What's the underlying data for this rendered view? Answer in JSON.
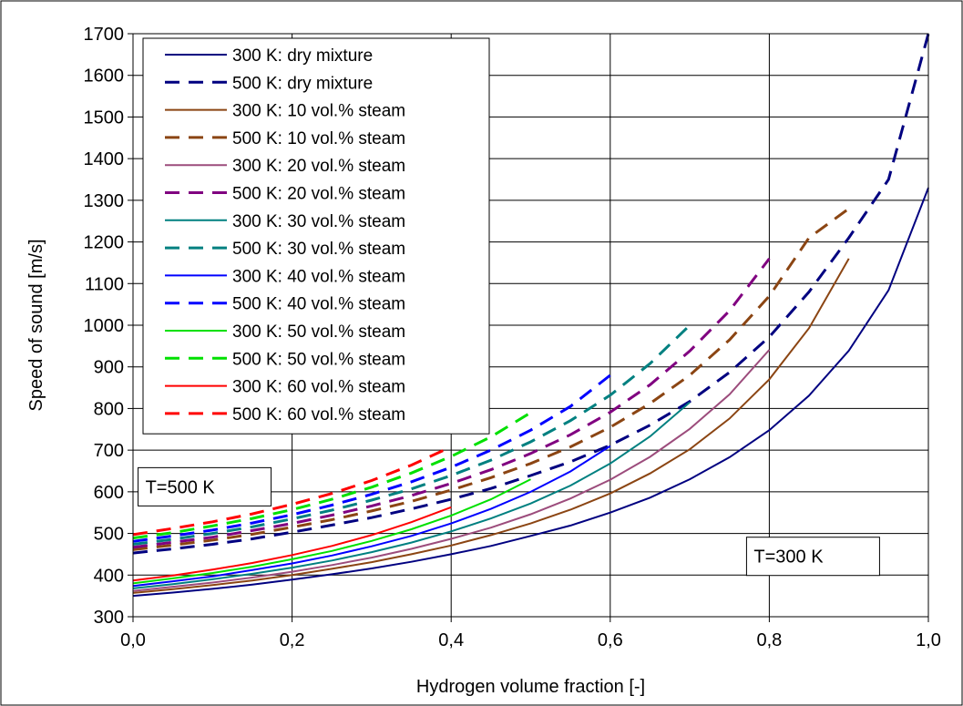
{
  "chart_data": {
    "type": "line",
    "xlabel": "Hydrogen volume fraction [-]",
    "ylabel": "Speed of sound [m/s]",
    "xlim": [
      0,
      1
    ],
    "ylim": [
      300,
      1700
    ],
    "xticks": [
      0,
      0.2,
      0.4,
      0.6,
      0.8,
      1.0
    ],
    "xtick_labels": [
      "0,0",
      "0,2",
      "0,4",
      "0,6",
      "0,8",
      "1,0"
    ],
    "yticks": [
      300,
      400,
      500,
      600,
      700,
      800,
      900,
      1000,
      1100,
      1200,
      1300,
      1400,
      1500,
      1600,
      1700
    ],
    "ytick_labels": [
      "300",
      "400",
      "500",
      "600",
      "700",
      "800",
      "900",
      "1000",
      "1100",
      "1200",
      "1300",
      "1400",
      "1500",
      "1600",
      "1700"
    ],
    "grid": true,
    "legend_position": "top-left",
    "annotations": [
      {
        "text": "T=500 K",
        "x": 0.09,
        "y": 612
      },
      {
        "text": "T=300 K",
        "x": 0.855,
        "y": 445
      }
    ],
    "series": [
      {
        "name": "300 K: dry mixture",
        "color": "#000080",
        "dash": false,
        "x": [
          0,
          0.05,
          0.1,
          0.15,
          0.2,
          0.25,
          0.3,
          0.35,
          0.4,
          0.45,
          0.5,
          0.55,
          0.6,
          0.65,
          0.7,
          0.75,
          0.8,
          0.85,
          0.9,
          0.95,
          1.0
        ],
        "y": [
          350,
          358,
          367,
          377,
          389,
          402,
          416,
          432,
          450,
          470,
          494,
          519,
          550,
          586,
          630,
          683,
          748,
          831,
          939,
          1084,
          1330
        ]
      },
      {
        "name": "500 K: dry mixture",
        "color": "#000080",
        "dash": true,
        "x": [
          0,
          0.05,
          0.1,
          0.15,
          0.2,
          0.25,
          0.3,
          0.35,
          0.4,
          0.45,
          0.5,
          0.55,
          0.6,
          0.65,
          0.7,
          0.75,
          0.8,
          0.85,
          0.9,
          0.95,
          1.0
        ],
        "y": [
          453,
          463,
          474,
          487,
          503,
          520,
          538,
          559,
          582,
          608,
          639,
          672,
          712,
          760,
          817,
          887,
          972,
          1080,
          1210,
          1350,
          1700
        ]
      },
      {
        "name": "300 K: 10 vol.% steam",
        "color": "#8B4513",
        "dash": false,
        "x": [
          0,
          0.05,
          0.1,
          0.15,
          0.2,
          0.25,
          0.3,
          0.35,
          0.4,
          0.45,
          0.5,
          0.55,
          0.6,
          0.65,
          0.7,
          0.75,
          0.8,
          0.85,
          0.9
        ],
        "y": [
          357,
          366,
          376,
          387,
          400,
          415,
          431,
          450,
          471,
          496,
          524,
          557,
          596,
          644,
          702,
          776,
          870,
          993,
          1160
        ]
      },
      {
        "name": "500 K: 10 vol.% steam",
        "color": "#8B4513",
        "dash": true,
        "x": [
          0,
          0.05,
          0.1,
          0.15,
          0.2,
          0.25,
          0.3,
          0.35,
          0.4,
          0.45,
          0.5,
          0.55,
          0.6,
          0.65,
          0.7,
          0.75,
          0.8,
          0.85,
          0.9
        ],
        "y": [
          461,
          472,
          484,
          498,
          515,
          533,
          554,
          577,
          604,
          634,
          668,
          708,
          755,
          812,
          880,
          965,
          1070,
          1210,
          1280
        ]
      },
      {
        "name": "300 K: 20 vol.% steam",
        "color": "#9C4C7C",
        "dash": false,
        "x": [
          0,
          0.05,
          0.1,
          0.15,
          0.2,
          0.25,
          0.3,
          0.35,
          0.4,
          0.45,
          0.5,
          0.55,
          0.6,
          0.65,
          0.7,
          0.75,
          0.8
        ],
        "y": [
          362,
          372,
          382,
          394,
          408,
          424,
          442,
          463,
          487,
          514,
          546,
          584,
          629,
          684,
          751,
          834,
          941
        ]
      },
      {
        "name": "500 K: 20 vol.% steam",
        "color": "#800080",
        "dash": true,
        "x": [
          0,
          0.05,
          0.1,
          0.15,
          0.2,
          0.25,
          0.3,
          0.35,
          0.4,
          0.45,
          0.5,
          0.55,
          0.6,
          0.65,
          0.7,
          0.75,
          0.8
        ],
        "y": [
          467,
          479,
          491,
          507,
          524,
          544,
          566,
          591,
          620,
          653,
          692,
          737,
          791,
          857,
          938,
          1035,
          1160
        ]
      },
      {
        "name": "300 K: 30 vol.% steam",
        "color": "#008080",
        "dash": false,
        "x": [
          0,
          0.05,
          0.1,
          0.15,
          0.2,
          0.25,
          0.3,
          0.35,
          0.4,
          0.45,
          0.5,
          0.55,
          0.6,
          0.65,
          0.7
        ],
        "y": [
          368,
          378,
          390,
          403,
          418,
          435,
          455,
          478,
          505,
          536,
          572,
          615,
          668,
          733,
          815
        ]
      },
      {
        "name": "500 K: 30 vol.% steam",
        "color": "#008080",
        "dash": true,
        "x": [
          0,
          0.05,
          0.1,
          0.15,
          0.2,
          0.25,
          0.3,
          0.35,
          0.4,
          0.45,
          0.5,
          0.55,
          0.6,
          0.65,
          0.7
        ],
        "y": [
          474,
          486,
          500,
          516,
          535,
          556,
          580,
          607,
          639,
          676,
          720,
          771,
          832,
          908,
          1000
        ]
      },
      {
        "name": "300 K: 40 vol.% steam",
        "color": "#0000FF",
        "dash": false,
        "x": [
          0,
          0.05,
          0.1,
          0.15,
          0.2,
          0.25,
          0.3,
          0.35,
          0.4,
          0.45,
          0.5,
          0.55,
          0.6
        ],
        "y": [
          374,
          385,
          397,
          412,
          428,
          447,
          469,
          494,
          524,
          559,
          600,
          649,
          710
        ]
      },
      {
        "name": "500 K: 40 vol.% steam",
        "color": "#0000FF",
        "dash": true,
        "x": [
          0,
          0.05,
          0.1,
          0.15,
          0.2,
          0.25,
          0.3,
          0.35,
          0.4,
          0.45,
          0.5,
          0.55,
          0.6
        ],
        "y": [
          481,
          494,
          508,
          525,
          545,
          568,
          594,
          624,
          659,
          700,
          748,
          805,
          880
        ]
      },
      {
        "name": "300 K: 50 vol.% steam",
        "color": "#00E000",
        "dash": false,
        "x": [
          0,
          0.05,
          0.1,
          0.15,
          0.2,
          0.25,
          0.3,
          0.35,
          0.4,
          0.45,
          0.5
        ],
        "y": [
          380,
          392,
          405,
          420,
          438,
          458,
          482,
          510,
          543,
          582,
          630
        ]
      },
      {
        "name": "500 K: 50 vol.% steam",
        "color": "#00E000",
        "dash": true,
        "x": [
          0,
          0.05,
          0.1,
          0.15,
          0.2,
          0.25,
          0.3,
          0.35,
          0.4,
          0.45,
          0.5
        ],
        "y": [
          489,
          502,
          518,
          536,
          557,
          582,
          611,
          645,
          685,
          732,
          790
        ]
      },
      {
        "name": "300 K: 60 vol.% steam",
        "color": "#FF0000",
        "dash": false,
        "x": [
          0,
          0.05,
          0.1,
          0.15,
          0.2,
          0.25,
          0.3,
          0.35,
          0.4
        ],
        "y": [
          387,
          399,
          413,
          429,
          448,
          470,
          496,
          527,
          563
        ]
      },
      {
        "name": "500 K: 60 vol.% steam",
        "color": "#FF0000",
        "dash": true,
        "x": [
          0,
          0.05,
          0.1,
          0.15,
          0.2,
          0.25,
          0.3,
          0.35,
          0.4
        ],
        "y": [
          497,
          512,
          528,
          547,
          570,
          596,
          627,
          664,
          708
        ]
      }
    ]
  }
}
